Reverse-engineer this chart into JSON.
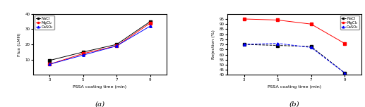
{
  "x": [
    3,
    5,
    7,
    9
  ],
  "flux": {
    "NaCl": [
      9.5,
      15,
      20,
      35
    ],
    "MgCl2": [
      7,
      14,
      19,
      34
    ],
    "CaSO4": [
      7,
      13,
      19,
      32
    ]
  },
  "rejection": {
    "NaCl": [
      70,
      69,
      68,
      42
    ],
    "MgCl2": [
      95,
      94,
      90,
      71
    ],
    "CaSO4": [
      70,
      71,
      67,
      42
    ]
  },
  "flux_ylim": [
    0,
    40
  ],
  "flux_yticks": [
    10,
    20,
    30,
    40
  ],
  "rejection_ylim": [
    40,
    100
  ],
  "rejection_yticks": [
    40,
    45,
    50,
    55,
    60,
    65,
    70,
    75,
    80,
    85,
    90,
    95
  ],
  "xlabel": "PSSA coating time (min)",
  "flux_ylabel": "Flux (LMH)",
  "rejection_ylabel": "Rejection (%)",
  "colors": {
    "NaCl": "#000000",
    "MgCl2": "#ff0000",
    "CaSO4": "#0000ff"
  },
  "markers": {
    "NaCl": "s",
    "MgCl2": "s",
    "CaSO4": "^"
  },
  "linestyles": {
    "NaCl": "--",
    "MgCl2": "-",
    "CaSO4": "--"
  },
  "flux_linestyles": {
    "NaCl": "-",
    "MgCl2": "-",
    "CaSO4": "-"
  },
  "label_a": "(a)",
  "label_b": "(b)",
  "background": "#ffffff",
  "legend_labels": [
    "NaCl",
    "MgCl₂",
    "CaSO₄"
  ]
}
